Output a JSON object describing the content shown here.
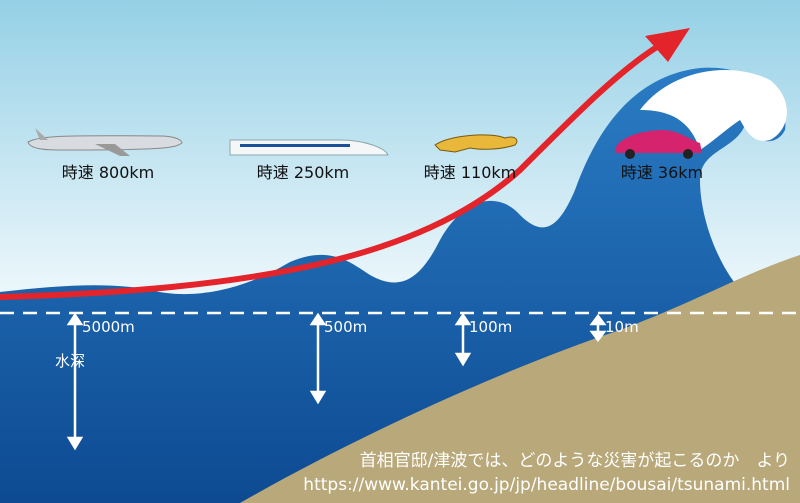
{
  "speeds": [
    "時速 800km",
    "時速 250km",
    "時速 110km",
    "時速 36km"
  ],
  "depths": [
    "5000m",
    "500m",
    "100m",
    "10m"
  ],
  "depth_label": "水深",
  "source": {
    "line1": "首相官邸/津波では、どのような災害が起こるのか　より",
    "line2": "https://www.kantei.go.jp/jp/headline/bousai/tsunami.html"
  }
}
